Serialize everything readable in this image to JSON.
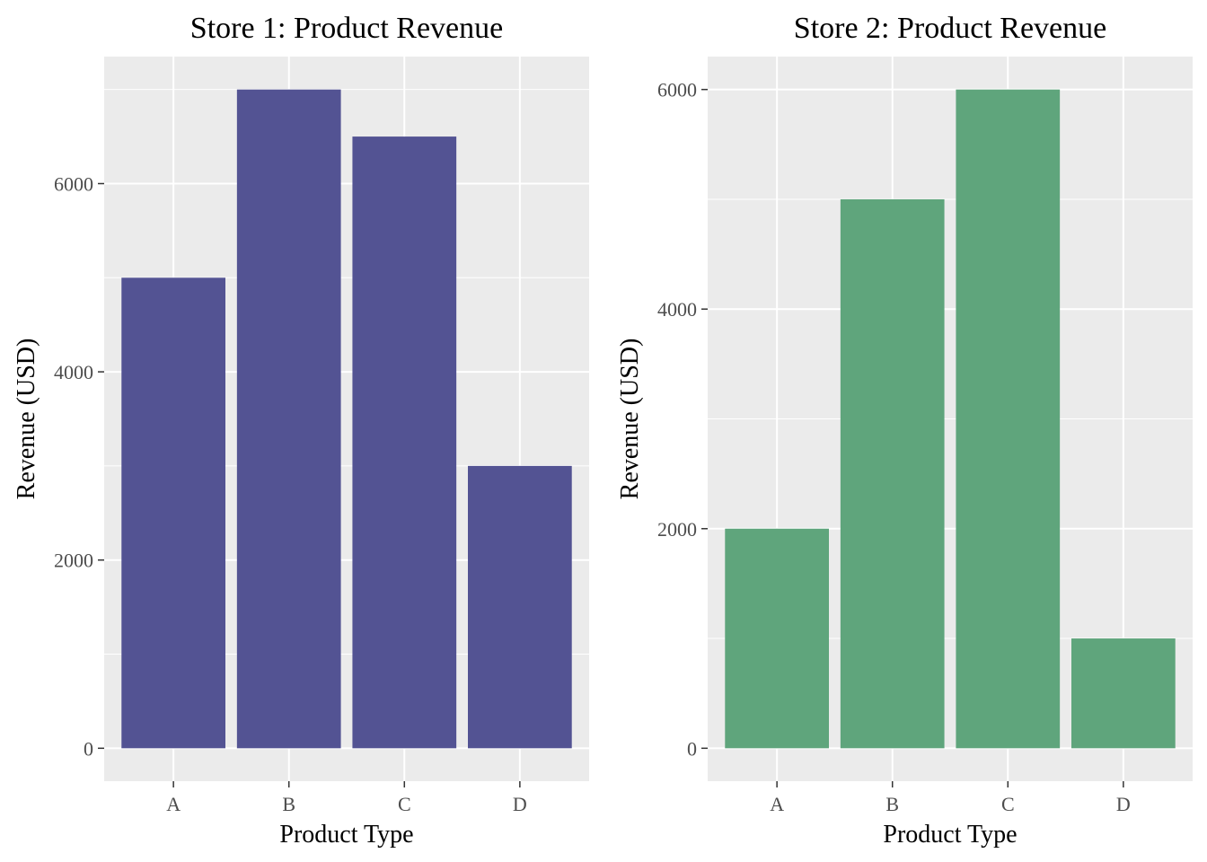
{
  "panel_background": "#ebebeb",
  "grid_color": "#ffffff",
  "tick_color": "#333333",
  "chart_data": [
    {
      "type": "bar",
      "title": "Store 1: Product Revenue",
      "xlabel": "Product Type",
      "ylabel": "Revenue (USD)",
      "categories": [
        "A",
        "B",
        "C",
        "D"
      ],
      "values": [
        5000,
        7000,
        6500,
        3000
      ],
      "color": "#535393",
      "ylim": [
        -350,
        7350
      ],
      "yticks": [
        0,
        2000,
        4000,
        6000
      ],
      "yticks_labels": [
        "0",
        "2000",
        "4000",
        "6000"
      ],
      "grid": true,
      "legend": "none"
    },
    {
      "type": "bar",
      "title": "Store 2: Product Revenue",
      "xlabel": "Product Type",
      "ylabel": "Revenue (USD)",
      "categories": [
        "A",
        "B",
        "C",
        "D"
      ],
      "values": [
        2000,
        5000,
        6000,
        1000
      ],
      "color": "#5fa57c",
      "ylim": [
        -300,
        6300
      ],
      "yticks": [
        0,
        2000,
        4000,
        6000
      ],
      "yticks_labels": [
        "0",
        "2000",
        "4000",
        "6000"
      ],
      "grid": true,
      "legend": "none"
    }
  ]
}
